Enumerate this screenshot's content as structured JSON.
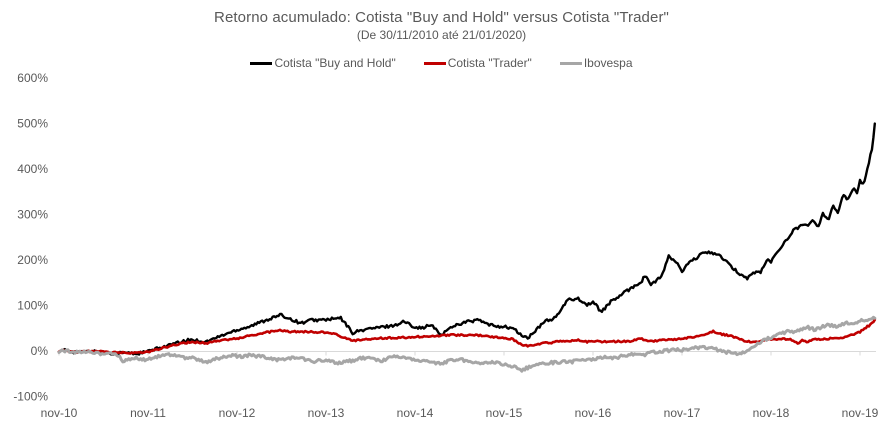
{
  "title": "Retorno acumulado: Cotista \"Buy and Hold\" versus Cotista \"Trader\"",
  "subtitle": "(De 30/11/2010 até 21/01/2020)",
  "legend": [
    {
      "label": "Cotista \"Buy and Hold\"",
      "color": "#000000"
    },
    {
      "label": "Cotista \"Trader\"",
      "color": "#c00000"
    },
    {
      "label": "Ibovespa",
      "color": "#a6a6a6"
    }
  ],
  "chart_data": {
    "type": "line",
    "title": "Retorno acumulado: Cotista \"Buy and Hold\" versus Cotista \"Trader\"",
    "subtitle": "(De 30/11/2010 até 21/01/2020)",
    "xlabel": "",
    "ylabel": "",
    "x_ticks": [
      "nov-10",
      "nov-11",
      "nov-12",
      "nov-13",
      "nov-14",
      "nov-15",
      "nov-16",
      "nov-17",
      "nov-18",
      "nov-19"
    ],
    "y_ticks": [
      "600%",
      "500%",
      "400%",
      "300%",
      "200%",
      "100%",
      "0%",
      "-100%"
    ],
    "ylim": [
      -100,
      600
    ],
    "x_range_months": [
      0,
      110
    ],
    "grid": "only zero axis line with small year tick marks",
    "legend_position": "top-center",
    "axis_color": "#d9d9d9",
    "text_color": "#595959",
    "series": [
      {
        "id": "buy-and-hold",
        "name": "Cotista \"Buy and Hold\"",
        "color": "#000000",
        "width": 2.4,
        "noise": 3.2,
        "points": [
          [
            0,
            0
          ],
          [
            1,
            2
          ],
          [
            2,
            -2
          ],
          [
            3,
            -3
          ],
          [
            4,
            -1
          ],
          [
            5.7,
            -2
          ],
          [
            7,
            -5
          ],
          [
            9,
            -4
          ],
          [
            10.5,
            -6
          ],
          [
            12,
            -1
          ],
          [
            13.8,
            8
          ],
          [
            15.8,
            17
          ],
          [
            17.8,
            25
          ],
          [
            19.8,
            20
          ],
          [
            21.8,
            33
          ],
          [
            23.9,
            46
          ],
          [
            25.9,
            55
          ],
          [
            27.9,
            68
          ],
          [
            29.9,
            79
          ],
          [
            31.3,
            70
          ],
          [
            32.6,
            61
          ],
          [
            34,
            68
          ],
          [
            35.3,
            68
          ],
          [
            36.7,
            70
          ],
          [
            38,
            72
          ],
          [
            39.6,
            40
          ],
          [
            41.4,
            48
          ],
          [
            43.4,
            52
          ],
          [
            45.4,
            57
          ],
          [
            46.5,
            65
          ],
          [
            47.7,
            55
          ],
          [
            48.8,
            50
          ],
          [
            50.2,
            57
          ],
          [
            51.5,
            35
          ],
          [
            53.1,
            55
          ],
          [
            54.9,
            64
          ],
          [
            56.6,
            68
          ],
          [
            58,
            57
          ],
          [
            60,
            53
          ],
          [
            61.2,
            50
          ],
          [
            62.3,
            35
          ],
          [
            63.2,
            28
          ],
          [
            64.3,
            45
          ],
          [
            65.7,
            68
          ],
          [
            66.7,
            70
          ],
          [
            67.7,
            90
          ],
          [
            68.6,
            112
          ],
          [
            70,
            116
          ],
          [
            71.1,
            101
          ],
          [
            72,
            108
          ],
          [
            73.1,
            86
          ],
          [
            74.4,
            108
          ],
          [
            75.8,
            123
          ],
          [
            77.1,
            138
          ],
          [
            78.5,
            152
          ],
          [
            79.1,
            167
          ],
          [
            79.8,
            145
          ],
          [
            81.2,
            163
          ],
          [
            82.2,
            207
          ],
          [
            83.2,
            196
          ],
          [
            84,
            174
          ],
          [
            84.9,
            193
          ],
          [
            85.9,
            204
          ],
          [
            87.2,
            218
          ],
          [
            88.2,
            215
          ],
          [
            89.3,
            207
          ],
          [
            90.6,
            185
          ],
          [
            92,
            167
          ],
          [
            92.8,
            160
          ],
          [
            93.6,
            171
          ],
          [
            94.6,
            174
          ],
          [
            95.5,
            200
          ],
          [
            96,
            196
          ],
          [
            97.3,
            229
          ],
          [
            98.2,
            244
          ],
          [
            99,
            266
          ],
          [
            99.6,
            270
          ],
          [
            100.3,
            281
          ],
          [
            101,
            273
          ],
          [
            101.7,
            288
          ],
          [
            102.3,
            270
          ],
          [
            103,
            303
          ],
          [
            103.7,
            288
          ],
          [
            104.4,
            321
          ],
          [
            105,
            303
          ],
          [
            105.7,
            343
          ],
          [
            106.4,
            332
          ],
          [
            107.1,
            358
          ],
          [
            107.6,
            347
          ],
          [
            108,
            376
          ],
          [
            108.5,
            365
          ],
          [
            109.1,
            409
          ],
          [
            109.6,
            442
          ],
          [
            110,
            497
          ]
        ]
      },
      {
        "id": "trader",
        "name": "Cotista \"Trader\"",
        "color": "#c00000",
        "width": 2.6,
        "noise": 1.8,
        "points": [
          [
            0,
            0
          ],
          [
            1,
            1
          ],
          [
            2,
            -2
          ],
          [
            3,
            -2
          ],
          [
            4,
            -1
          ],
          [
            5.7,
            -1
          ],
          [
            7,
            -4
          ],
          [
            9,
            -3
          ],
          [
            10.5,
            -5
          ],
          [
            12,
            -2
          ],
          [
            13.8,
            6
          ],
          [
            15.8,
            14
          ],
          [
            17.8,
            20
          ],
          [
            19.8,
            17
          ],
          [
            21.8,
            24
          ],
          [
            23.9,
            27
          ],
          [
            25.9,
            34
          ],
          [
            27.9,
            41
          ],
          [
            29.9,
            45
          ],
          [
            31.3,
            42
          ],
          [
            32.6,
            43
          ],
          [
            34,
            42
          ],
          [
            35.3,
            41
          ],
          [
            36.7,
            40
          ],
          [
            38,
            32
          ],
          [
            39.6,
            22
          ],
          [
            41.4,
            26
          ],
          [
            43.4,
            28
          ],
          [
            45.4,
            29
          ],
          [
            47,
            30
          ],
          [
            49,
            32
          ],
          [
            51,
            33
          ],
          [
            53,
            35
          ],
          [
            55,
            35
          ],
          [
            57,
            34
          ],
          [
            58.5,
            31
          ],
          [
            60,
            28
          ],
          [
            61.2,
            26
          ],
          [
            62.3,
            15
          ],
          [
            63.2,
            10
          ],
          [
            64.3,
            15
          ],
          [
            65.7,
            18
          ],
          [
            66.7,
            19
          ],
          [
            67.7,
            22
          ],
          [
            68.6,
            22
          ],
          [
            70,
            24
          ],
          [
            71.1,
            20
          ],
          [
            72,
            22
          ],
          [
            73.1,
            20
          ],
          [
            74.4,
            21
          ],
          [
            75.8,
            21
          ],
          [
            77.1,
            22
          ],
          [
            78.5,
            27
          ],
          [
            79.8,
            21
          ],
          [
            81.2,
            24
          ],
          [
            82.2,
            25
          ],
          [
            84,
            27
          ],
          [
            85.9,
            31
          ],
          [
            87.2,
            38
          ],
          [
            88.2,
            43
          ],
          [
            89.3,
            37
          ],
          [
            90.6,
            33
          ],
          [
            92,
            25
          ],
          [
            92.8,
            21
          ],
          [
            93.6,
            19
          ],
          [
            94.6,
            22
          ],
          [
            96,
            25
          ],
          [
            97.3,
            27
          ],
          [
            98.5,
            26
          ],
          [
            99.6,
            17
          ],
          [
            100.3,
            24
          ],
          [
            101,
            19
          ],
          [
            101.7,
            26
          ],
          [
            103,
            26
          ],
          [
            104.4,
            28
          ],
          [
            105.7,
            30
          ],
          [
            107.1,
            36
          ],
          [
            108,
            42
          ],
          [
            108.7,
            50
          ],
          [
            109.3,
            57
          ],
          [
            110,
            67
          ]
        ]
      },
      {
        "id": "ibovespa",
        "name": "Ibovespa",
        "color": "#a6a6a6",
        "width": 3,
        "noise": 3.2,
        "points": [
          [
            0,
            0
          ],
          [
            1,
            1
          ],
          [
            2,
            -2
          ],
          [
            3,
            -4
          ],
          [
            4,
            -2
          ],
          [
            5,
            -5
          ],
          [
            6,
            -7
          ],
          [
            7,
            -6
          ],
          [
            8,
            -10
          ],
          [
            8.7,
            -24
          ],
          [
            9.5,
            -18
          ],
          [
            10.5,
            -16
          ],
          [
            11.5,
            -20
          ],
          [
            12,
            -18
          ],
          [
            13,
            -13
          ],
          [
            14,
            -9
          ],
          [
            15,
            -8
          ],
          [
            16,
            -12
          ],
          [
            17,
            -16
          ],
          [
            18,
            -14
          ],
          [
            19,
            -20
          ],
          [
            19.8,
            -24
          ],
          [
            20.6,
            -21
          ],
          [
            21.5,
            -16
          ],
          [
            22.5,
            -12
          ],
          [
            23.5,
            -10
          ],
          [
            24.5,
            -12
          ],
          [
            25.5,
            -9
          ],
          [
            26.5,
            -11
          ],
          [
            27.5,
            -13
          ],
          [
            28.5,
            -17
          ],
          [
            29.5,
            -20
          ],
          [
            30.5,
            -17
          ],
          [
            31.5,
            -14
          ],
          [
            32.5,
            -16
          ],
          [
            33.5,
            -19
          ],
          [
            34.5,
            -23
          ],
          [
            35.5,
            -20
          ],
          [
            36.5,
            -22
          ],
          [
            37.5,
            -26
          ],
          [
            38.5,
            -24
          ],
          [
            39.5,
            -21
          ],
          [
            40.5,
            -17
          ],
          [
            41.5,
            -15
          ],
          [
            42.5,
            -19
          ],
          [
            43.5,
            -23
          ],
          [
            44.5,
            -15
          ],
          [
            45.5,
            -11
          ],
          [
            46.5,
            -13
          ],
          [
            47.5,
            -17
          ],
          [
            48.5,
            -19
          ],
          [
            49.5,
            -23
          ],
          [
            50.5,
            -26
          ],
          [
            51.5,
            -28
          ],
          [
            52.5,
            -22
          ],
          [
            53.5,
            -18
          ],
          [
            54.5,
            -20
          ],
          [
            55.5,
            -23
          ],
          [
            56.5,
            -25
          ],
          [
            57.5,
            -27
          ],
          [
            58.5,
            -25
          ],
          [
            59.5,
            -28
          ],
          [
            60.5,
            -31
          ],
          [
            61.5,
            -35
          ],
          [
            62.3,
            -42
          ],
          [
            63,
            -38
          ],
          [
            64,
            -33
          ],
          [
            65,
            -28
          ],
          [
            66,
            -26
          ],
          [
            67,
            -25
          ],
          [
            68,
            -23
          ],
          [
            69,
            -24
          ],
          [
            70,
            -21
          ],
          [
            71,
            -19
          ],
          [
            72,
            -18
          ],
          [
            73,
            -16
          ],
          [
            74,
            -13
          ],
          [
            75,
            -15
          ],
          [
            76,
            -11
          ],
          [
            77,
            -8
          ],
          [
            78,
            -5
          ],
          [
            79,
            -8
          ],
          [
            80,
            -3
          ],
          [
            81,
            -1
          ],
          [
            82,
            1
          ],
          [
            83,
            3
          ],
          [
            84,
            2
          ],
          [
            85,
            4
          ],
          [
            86,
            7
          ],
          [
            87,
            9
          ],
          [
            88,
            6
          ],
          [
            89,
            2
          ],
          [
            90,
            -2
          ],
          [
            91,
            -7
          ],
          [
            92,
            -4
          ],
          [
            93,
            2
          ],
          [
            93.5,
            8
          ],
          [
            94,
            14
          ],
          [
            94.6,
            20
          ],
          [
            95.3,
            25
          ],
          [
            96,
            30
          ],
          [
            97,
            36
          ],
          [
            97.6,
            40
          ],
          [
            98.3,
            44
          ],
          [
            99,
            42
          ],
          [
            99.6,
            46
          ],
          [
            100.3,
            50
          ],
          [
            101,
            52
          ],
          [
            101.8,
            47
          ],
          [
            102.5,
            51
          ],
          [
            103.3,
            55
          ],
          [
            104,
            57
          ],
          [
            104.7,
            53
          ],
          [
            105.5,
            59
          ],
          [
            106.3,
            62
          ],
          [
            107,
            58
          ],
          [
            107.7,
            65
          ],
          [
            108.4,
            68
          ],
          [
            109.1,
            70
          ],
          [
            109.6,
            73
          ],
          [
            110,
            75
          ]
        ]
      }
    ]
  }
}
